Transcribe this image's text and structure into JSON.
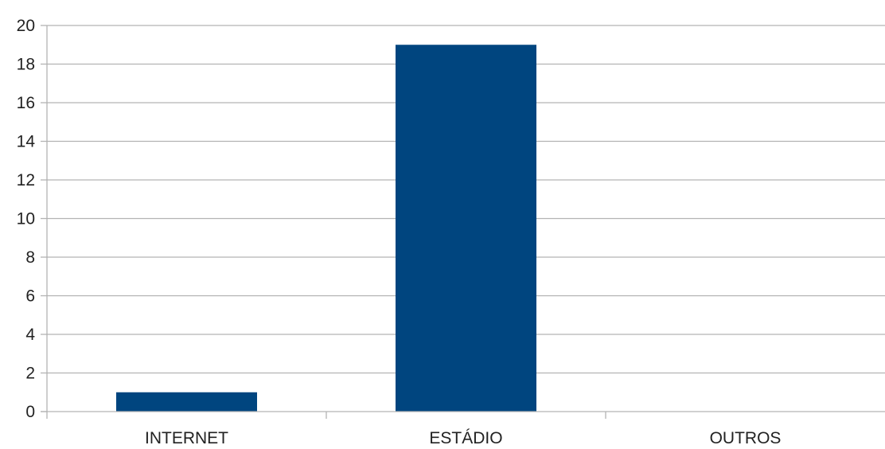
{
  "chart_data": {
    "type": "bar",
    "categories": [
      "INTERNET",
      "ESTÁDIO",
      "OUTROS"
    ],
    "values": [
      1,
      19,
      0
    ],
    "ylim": [
      0,
      20
    ],
    "yticks": [
      0,
      2,
      4,
      6,
      8,
      10,
      12,
      14,
      16,
      18,
      20
    ],
    "grid": true,
    "legend": "none",
    "bar_color": "#00457f",
    "grid_color": "#b3b3b3"
  }
}
